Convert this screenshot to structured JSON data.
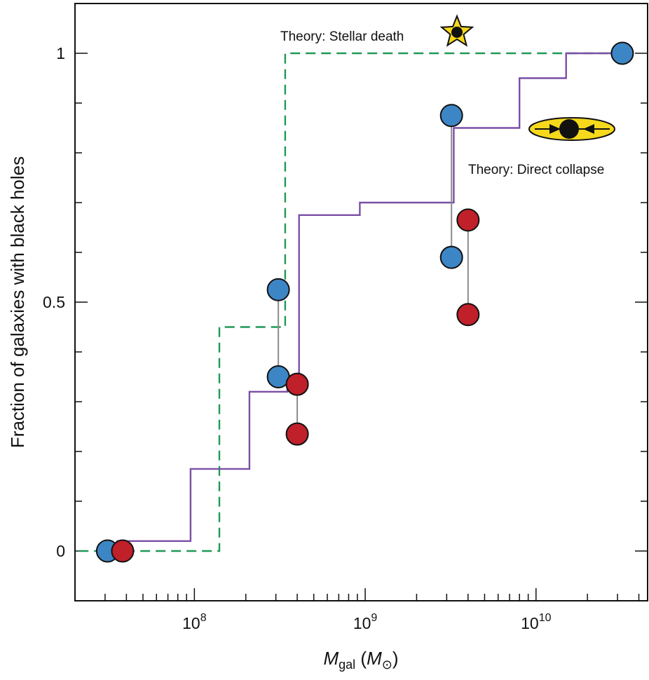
{
  "chart_data": {
    "type": "scatter",
    "ylabel": "Fraction of galaxies with black holes",
    "xlabel": {
      "symbol": "M",
      "subscript": "gal",
      "unit_open": " (",
      "unit_symbol": "M",
      "unit_subscript": "⊙",
      "unit_close": ")"
    },
    "x_scale": "log",
    "xlim": [
      20000000,
      45000000000
    ],
    "ylim": [
      -0.1,
      1.1
    ],
    "x_ticks": [
      {
        "value": 100000000,
        "base": "10",
        "exp": "8"
      },
      {
        "value": 1000000000,
        "base": "10",
        "exp": "9"
      },
      {
        "value": 10000000000,
        "base": "10",
        "exp": "10"
      }
    ],
    "y_ticks": [
      {
        "value": 0,
        "label": "0"
      },
      {
        "value": 0.5,
        "label": "0.5"
      },
      {
        "value": 1,
        "label": "1"
      }
    ],
    "y_minor_step": 0.1,
    "colors": {
      "blue": "#3d86c6",
      "red": "#c0202a",
      "purple": "#7b4fa6",
      "green": "#1f9a55",
      "star": "#f6d91c",
      "ellipse": "#f6d91c",
      "connector": "#8c8c8c"
    },
    "series": [
      {
        "color": "blue",
        "points": [
          {
            "x": 31000000,
            "y": 0.0
          },
          {
            "x": 310000000,
            "y": 0.525
          },
          {
            "x": 310000000,
            "y": 0.35
          },
          {
            "x": 3200000000,
            "y": 0.875
          },
          {
            "x": 3200000000,
            "y": 0.59
          },
          {
            "x": 32000000000,
            "y": 1.0
          }
        ]
      },
      {
        "color": "red",
        "points": [
          {
            "x": 38000000,
            "y": 0.0
          },
          {
            "x": 400000000,
            "y": 0.335
          },
          {
            "x": 400000000,
            "y": 0.235
          },
          {
            "x": 4000000000,
            "y": 0.665
          },
          {
            "x": 4000000000,
            "y": 0.475
          }
        ]
      },
      {
        "color": "purple",
        "style": "solid",
        "steps": [
          [
            35000000,
            0.02
          ],
          [
            95000000,
            0.02
          ],
          [
            95000000,
            0.165
          ],
          [
            210000000,
            0.165
          ],
          [
            210000000,
            0.32
          ],
          [
            350000000,
            0.32
          ],
          [
            350000000,
            0.33
          ],
          [
            410000000,
            0.33
          ],
          [
            410000000,
            0.675
          ],
          [
            930000000,
            0.675
          ],
          [
            930000000,
            0.7
          ],
          [
            3300000000,
            0.7
          ],
          [
            3300000000,
            0.85
          ],
          [
            8000000000,
            0.85
          ],
          [
            8000000000,
            0.95
          ],
          [
            15000000000,
            0.95
          ],
          [
            15000000000,
            1.0
          ],
          [
            32000000000,
            1.0
          ]
        ]
      },
      {
        "color": "green",
        "style": "dashed",
        "steps": [
          [
            21000000,
            0.0
          ],
          [
            140000000,
            0.0
          ],
          [
            140000000,
            0.45
          ],
          [
            340000000,
            0.45
          ],
          [
            340000000,
            1.0
          ],
          [
            32000000000,
            1.0
          ]
        ]
      }
    ],
    "connectors": [
      [
        [
          310000000,
          0.525
        ],
        [
          310000000,
          0.35
        ]
      ],
      [
        [
          400000000,
          0.335
        ],
        [
          400000000,
          0.235
        ]
      ],
      [
        [
          3200000000,
          0.875
        ],
        [
          3200000000,
          0.59
        ]
      ],
      [
        [
          4000000000,
          0.665
        ],
        [
          4000000000,
          0.475
        ]
      ]
    ],
    "annotations": {
      "stellar_death": {
        "text": "Theory: Stellar death"
      },
      "direct_collapse": {
        "text": "Theory: Direct collapse"
      }
    }
  }
}
